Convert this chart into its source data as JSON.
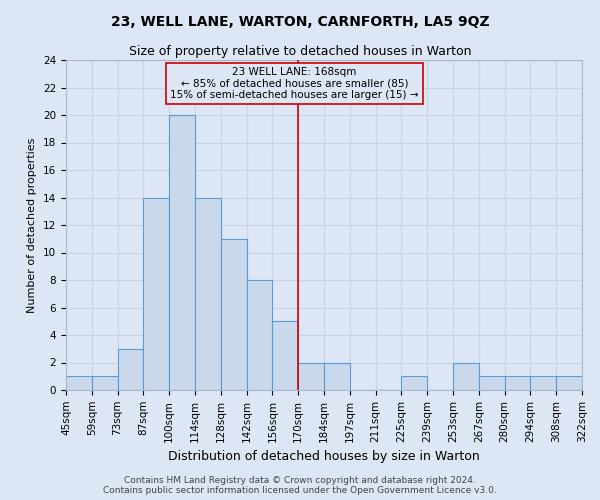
{
  "title": "23, WELL LANE, WARTON, CARNFORTH, LA5 9QZ",
  "subtitle": "Size of property relative to detached houses in Warton",
  "xlabel": "Distribution of detached houses by size in Warton",
  "ylabel": "Number of detached properties",
  "bin_labels": [
    "45sqm",
    "59sqm",
    "73sqm",
    "87sqm",
    "100sqm",
    "114sqm",
    "128sqm",
    "142sqm",
    "156sqm",
    "170sqm",
    "184sqm",
    "197sqm",
    "211sqm",
    "225sqm",
    "239sqm",
    "253sqm",
    "267sqm",
    "280sqm",
    "294sqm",
    "308sqm",
    "322sqm"
  ],
  "counts": [
    1,
    1,
    3,
    14,
    20,
    14,
    11,
    8,
    5,
    2,
    2,
    0,
    0,
    1,
    0,
    2,
    1,
    1,
    1,
    1
  ],
  "bar_color": "#c9d9eb",
  "bar_edge_color": "#5b9bd5",
  "grid_color": "#c8d4e3",
  "background_color": "#dce6f5",
  "vline_bin": 9.0,
  "annotation_text": "23 WELL LANE: 168sqm\n← 85% of detached houses are smaller (85)\n15% of semi-detached houses are larger (15) →",
  "vline_color": "#cc0000",
  "annotation_box_edge": "#cc0000",
  "annotation_box_fill": "#dce6f5",
  "ylim": [
    0,
    24
  ],
  "yticks": [
    0,
    2,
    4,
    6,
    8,
    10,
    12,
    14,
    16,
    18,
    20,
    22,
    24
  ],
  "footer_line1": "Contains HM Land Registry data © Crown copyright and database right 2024.",
  "footer_line2": "Contains public sector information licensed under the Open Government Licence v3.0.",
  "title_fontsize": 10,
  "subtitle_fontsize": 9,
  "xlabel_fontsize": 9,
  "ylabel_fontsize": 8,
  "tick_fontsize": 7.5,
  "footer_fontsize": 6.5,
  "annotation_fontsize": 7.5
}
